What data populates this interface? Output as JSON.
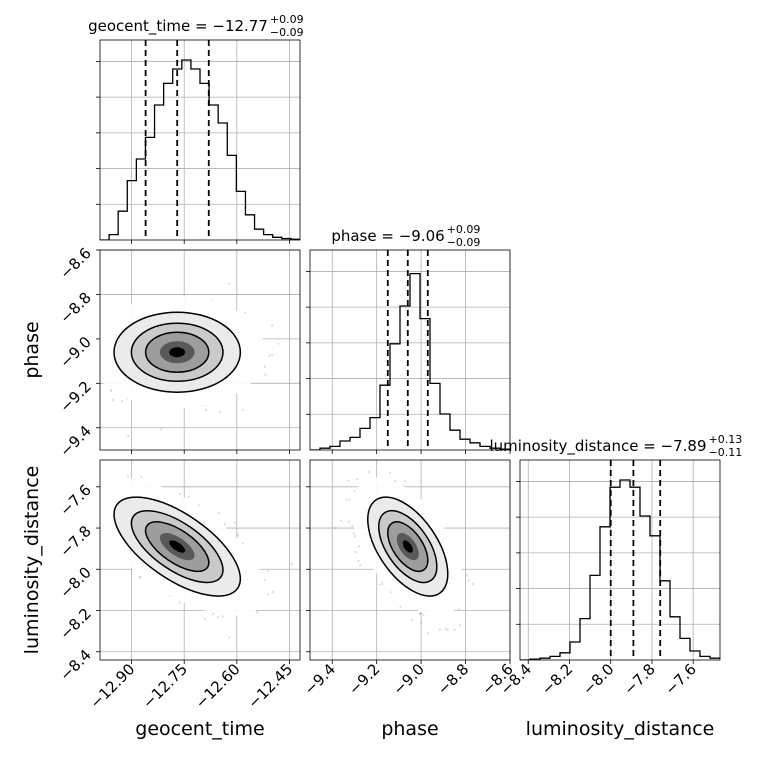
{
  "chart_data": {
    "type": "corner",
    "parameters": [
      {
        "name": "geocent_time",
        "label": "geocent_time",
        "title_main": "geocent_time = −12.77",
        "title_plus": "+0.09",
        "title_minus": "−0.09",
        "median": -12.77,
        "q16": -12.86,
        "q84": -12.68,
        "range": [
          -12.99,
          -12.42
        ],
        "ticks": [
          -12.9,
          -12.75,
          -12.6,
          -12.45
        ],
        "tick_labels": [
          "−12.90",
          "−12.75",
          "−12.60",
          "−12.45"
        ],
        "hist_density": [
          0.0,
          0.03,
          0.16,
          0.33,
          0.45,
          0.57,
          0.75,
          0.87,
          0.95,
          1.0,
          0.95,
          0.87,
          0.75,
          0.65,
          0.47,
          0.27,
          0.14,
          0.06,
          0.03,
          0.015,
          0.008,
          0.004
        ]
      },
      {
        "name": "phase",
        "label": "phase",
        "title_main": "phase = −9.06",
        "title_plus": "+0.09",
        "title_minus": "−0.09",
        "median": -9.06,
        "q16": -9.15,
        "q84": -8.97,
        "range": [
          -9.5,
          -8.6
        ],
        "ticks": [
          -9.4,
          -9.2,
          -9.0,
          -8.8,
          -8.6
        ],
        "tick_labels": [
          "−9.4",
          "−9.2",
          "−9.0",
          "−8.8",
          "−8.6"
        ],
        "hist_density": [
          0.0,
          0.01,
          0.02,
          0.05,
          0.07,
          0.12,
          0.18,
          0.36,
          0.59,
          0.8,
          0.98,
          0.73,
          0.37,
          0.2,
          0.11,
          0.06,
          0.04,
          0.02,
          0.01,
          0.005
        ]
      },
      {
        "name": "luminosity_distance",
        "label": "luminosity_distance",
        "title_main": "luminosity_distance = −7.89",
        "title_plus": "+0.13",
        "title_minus": "−0.11",
        "median": -7.89,
        "q16": -8.0,
        "q84": -7.76,
        "range": [
          -8.44,
          -7.47
        ],
        "ticks": [
          -8.4,
          -8.2,
          -8.0,
          -7.8,
          -7.6
        ],
        "tick_labels": [
          "−8.4",
          "−8.2",
          "−8.0",
          "−7.8",
          "−7.6"
        ],
        "hist_density": [
          0.0,
          0.005,
          0.01,
          0.02,
          0.04,
          0.1,
          0.23,
          0.47,
          0.74,
          0.96,
          1.0,
          0.96,
          0.8,
          0.69,
          0.44,
          0.24,
          0.12,
          0.05,
          0.02,
          0.01
        ]
      }
    ],
    "pairs": [
      {
        "x": 0,
        "y": 1,
        "cx": -12.77,
        "cy": -9.06,
        "sx": 0.09,
        "sy": 0.09,
        "rho": 0.0
      },
      {
        "x": 0,
        "y": 2,
        "cx": -12.77,
        "cy": -7.89,
        "sx": 0.09,
        "sy": 0.12,
        "rho": -0.65
      },
      {
        "x": 1,
        "y": 2,
        "cx": -9.06,
        "cy": -7.89,
        "sx": 0.09,
        "sy": 0.12,
        "rho": -0.55
      }
    ],
    "grid": true,
    "colors": {
      "line": "#000000",
      "grid": "#b0b0b0",
      "points": "#808080"
    }
  }
}
